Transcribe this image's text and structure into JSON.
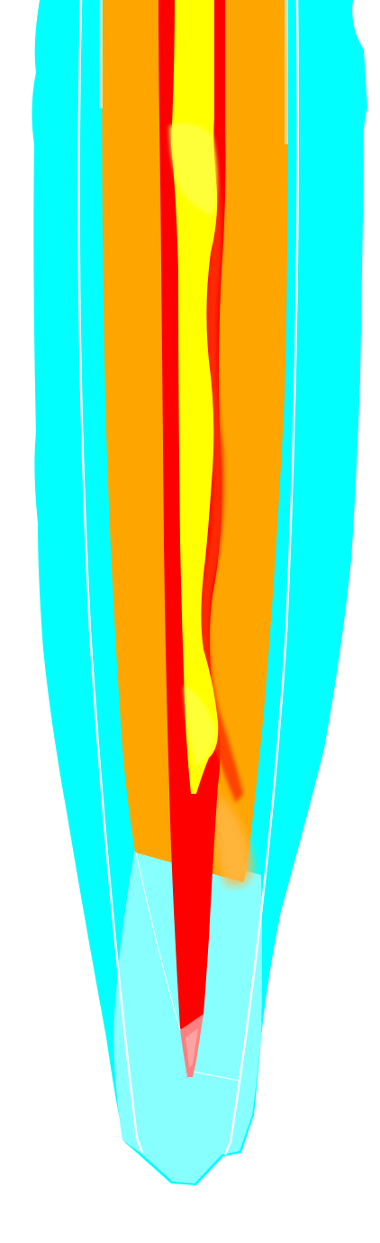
{
  "image": {
    "subject": "abstract-elongated-flame-shape",
    "colors": {
      "background": "#ffffff",
      "cyan_outer": "#00ffff",
      "cyan_light": "#88ffff",
      "white_line": "#ffffff",
      "orange": "#ffa500",
      "red": "#ff0000",
      "yellow": "#ffff00",
      "pink_tip": "#ff8080"
    }
  }
}
